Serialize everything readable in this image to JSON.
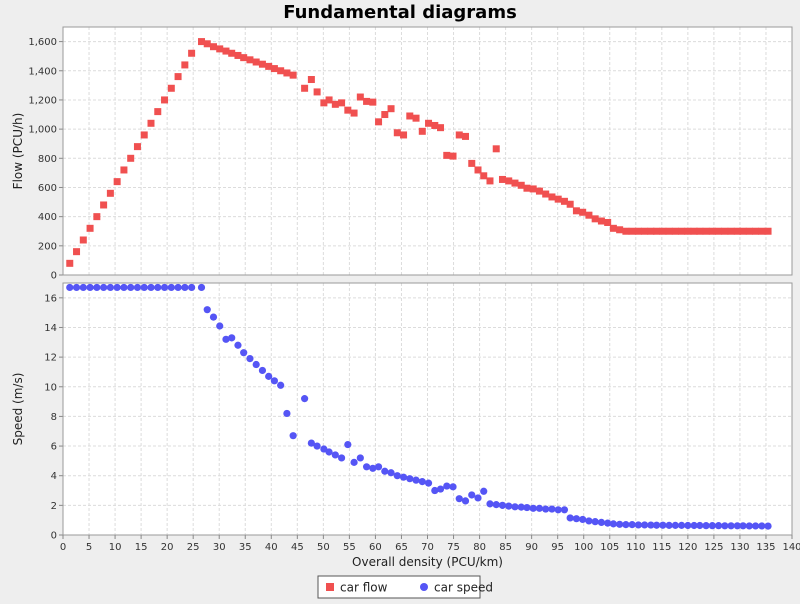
{
  "chart_data": {
    "type": "scatter",
    "title": "Fundamental diagrams",
    "xlabel": "Overall density (PCU/km)",
    "xlim": [
      0,
      140
    ],
    "x_ticks": [
      "0",
      "5",
      "10",
      "15",
      "20",
      "25",
      "30",
      "35",
      "40",
      "45",
      "50",
      "55",
      "60",
      "65",
      "70",
      "75",
      "80",
      "85",
      "90",
      "95",
      "100",
      "105",
      "110",
      "115",
      "120",
      "125",
      "130",
      "135",
      "140"
    ],
    "grid": true,
    "legend_position": "bottom-center",
    "legend": [
      {
        "label": "car flow",
        "marker": "square",
        "color": "#f05050"
      },
      {
        "label": "car speed",
        "marker": "circle",
        "color": "#5555f5"
      }
    ],
    "panels": [
      {
        "ylabel": "Flow (PCU/h)",
        "ylim": [
          0,
          1700
        ],
        "y_ticks": [
          "0",
          "200",
          "400",
          "600",
          "800",
          "1,000",
          "1,200",
          "1,400",
          "1,600"
        ],
        "series": [
          {
            "name": "car flow",
            "color": "#f05050",
            "marker": "square",
            "points": [
              [
                1.3,
                80
              ],
              [
                2.6,
                160
              ],
              [
                3.9,
                240
              ],
              [
                5.2,
                320
              ],
              [
                6.5,
                400
              ],
              [
                7.8,
                480
              ],
              [
                9.1,
                560
              ],
              [
                10.4,
                640
              ],
              [
                11.7,
                720
              ],
              [
                13.0,
                800
              ],
              [
                14.3,
                880
              ],
              [
                15.6,
                960
              ],
              [
                16.9,
                1040
              ],
              [
                18.2,
                1120
              ],
              [
                19.5,
                1200
              ],
              [
                20.8,
                1280
              ],
              [
                22.1,
                1360
              ],
              [
                23.4,
                1440
              ],
              [
                24.7,
                1520
              ],
              [
                26.6,
                1600
              ],
              [
                27.7,
                1585
              ],
              [
                28.9,
                1565
              ],
              [
                30.1,
                1550
              ],
              [
                31.3,
                1535
              ],
              [
                32.4,
                1520
              ],
              [
                33.6,
                1505
              ],
              [
                34.7,
                1490
              ],
              [
                35.9,
                1475
              ],
              [
                37.1,
                1460
              ],
              [
                38.3,
                1445
              ],
              [
                39.5,
                1430
              ],
              [
                40.6,
                1415
              ],
              [
                41.8,
                1400
              ],
              [
                43.0,
                1385
              ],
              [
                44.2,
                1370
              ],
              [
                46.4,
                1280
              ],
              [
                47.7,
                1340
              ],
              [
                48.8,
                1255
              ],
              [
                50.1,
                1180
              ],
              [
                51.1,
                1200
              ],
              [
                52.3,
                1170
              ],
              [
                53.5,
                1180
              ],
              [
                54.7,
                1130
              ],
              [
                55.9,
                1110
              ],
              [
                57.1,
                1220
              ],
              [
                58.3,
                1190
              ],
              [
                59.5,
                1185
              ],
              [
                60.6,
                1050
              ],
              [
                61.8,
                1100
              ],
              [
                63.0,
                1140
              ],
              [
                64.2,
                975
              ],
              [
                65.4,
                960
              ],
              [
                66.6,
                1090
              ],
              [
                67.8,
                1075
              ],
              [
                69.0,
                985
              ],
              [
                70.2,
                1040
              ],
              [
                71.4,
                1025
              ],
              [
                72.5,
                1010
              ],
              [
                73.7,
                820
              ],
              [
                74.9,
                815
              ],
              [
                76.1,
                960
              ],
              [
                77.3,
                950
              ],
              [
                78.5,
                765
              ],
              [
                79.7,
                720
              ],
              [
                80.8,
                680
              ],
              [
                82.0,
                645
              ],
              [
                83.2,
                865
              ],
              [
                84.4,
                655
              ],
              [
                85.6,
                645
              ],
              [
                86.8,
                630
              ],
              [
                88.0,
                615
              ],
              [
                89.1,
                595
              ],
              [
                90.3,
                590
              ],
              [
                91.5,
                575
              ],
              [
                92.7,
                555
              ],
              [
                93.9,
                535
              ],
              [
                95.1,
                520
              ],
              [
                96.3,
                505
              ],
              [
                97.4,
                485
              ],
              [
                98.6,
                440
              ],
              [
                99.8,
                430
              ],
              [
                101.0,
                410
              ],
              [
                102.2,
                385
              ],
              [
                103.4,
                370
              ],
              [
                104.6,
                360
              ],
              [
                105.7,
                320
              ],
              [
                106.9,
                310
              ],
              [
                108.1,
                300
              ],
              [
                109.3,
                300
              ],
              [
                110.5,
                300
              ],
              [
                111.7,
                300
              ],
              [
                112.9,
                300
              ],
              [
                114.0,
                300
              ],
              [
                115.2,
                300
              ],
              [
                116.4,
                300
              ],
              [
                117.6,
                300
              ],
              [
                118.8,
                300
              ],
              [
                120.0,
                300
              ],
              [
                121.2,
                300
              ],
              [
                122.3,
                300
              ],
              [
                123.5,
                300
              ],
              [
                124.7,
                300
              ],
              [
                125.9,
                300
              ],
              [
                127.1,
                300
              ],
              [
                128.3,
                300
              ],
              [
                129.5,
                300
              ],
              [
                130.6,
                300
              ],
              [
                131.8,
                300
              ],
              [
                133.0,
                300
              ],
              [
                134.2,
                300
              ],
              [
                135.4,
                300
              ]
            ]
          }
        ]
      },
      {
        "ylabel": "Speed (m/s)",
        "ylim": [
          0,
          17
        ],
        "y_ticks": [
          "0",
          "2",
          "4",
          "6",
          "8",
          "10",
          "12",
          "14",
          "16"
        ],
        "series": [
          {
            "name": "car speed",
            "color": "#5555f5",
            "marker": "circle",
            "points": [
              [
                1.3,
                16.7
              ],
              [
                2.6,
                16.7
              ],
              [
                3.9,
                16.7
              ],
              [
                5.2,
                16.7
              ],
              [
                6.5,
                16.7
              ],
              [
                7.8,
                16.7
              ],
              [
                9.1,
                16.7
              ],
              [
                10.4,
                16.7
              ],
              [
                11.7,
                16.7
              ],
              [
                13.0,
                16.7
              ],
              [
                14.3,
                16.7
              ],
              [
                15.6,
                16.7
              ],
              [
                16.9,
                16.7
              ],
              [
                18.2,
                16.7
              ],
              [
                19.5,
                16.7
              ],
              [
                20.8,
                16.7
              ],
              [
                22.1,
                16.7
              ],
              [
                23.4,
                16.7
              ],
              [
                24.7,
                16.7
              ],
              [
                26.6,
                16.7
              ],
              [
                27.7,
                15.2
              ],
              [
                28.9,
                14.7
              ],
              [
                30.1,
                14.1
              ],
              [
                31.3,
                13.2
              ],
              [
                32.4,
                13.3
              ],
              [
                33.6,
                12.8
              ],
              [
                34.7,
                12.3
              ],
              [
                35.9,
                11.9
              ],
              [
                37.1,
                11.5
              ],
              [
                38.3,
                11.1
              ],
              [
                39.5,
                10.7
              ],
              [
                40.6,
                10.4
              ],
              [
                41.8,
                10.1
              ],
              [
                43.0,
                8.2
              ],
              [
                44.2,
                6.7
              ],
              [
                46.4,
                9.2
              ],
              [
                47.7,
                6.2
              ],
              [
                48.8,
                6.0
              ],
              [
                50.1,
                5.8
              ],
              [
                51.1,
                5.6
              ],
              [
                52.3,
                5.4
              ],
              [
                53.5,
                5.2
              ],
              [
                54.7,
                6.1
              ],
              [
                55.9,
                4.9
              ],
              [
                57.1,
                5.2
              ],
              [
                58.3,
                4.6
              ],
              [
                59.5,
                4.5
              ],
              [
                60.6,
                4.6
              ],
              [
                61.8,
                4.3
              ],
              [
                63.0,
                4.2
              ],
              [
                64.2,
                4.0
              ],
              [
                65.4,
                3.9
              ],
              [
                66.6,
                3.8
              ],
              [
                67.8,
                3.7
              ],
              [
                69.0,
                3.6
              ],
              [
                70.2,
                3.5
              ],
              [
                71.4,
                3.0
              ],
              [
                72.5,
                3.1
              ],
              [
                73.7,
                3.3
              ],
              [
                74.9,
                3.25
              ],
              [
                76.1,
                2.45
              ],
              [
                77.3,
                2.3
              ],
              [
                78.5,
                2.7
              ],
              [
                79.7,
                2.5
              ],
              [
                80.8,
                2.95
              ],
              [
                82.0,
                2.1
              ],
              [
                83.2,
                2.05
              ],
              [
                84.4,
                2.0
              ],
              [
                85.6,
                1.95
              ],
              [
                86.8,
                1.9
              ],
              [
                88.0,
                1.88
              ],
              [
                89.1,
                1.85
              ],
              [
                90.3,
                1.8
              ],
              [
                91.5,
                1.8
              ],
              [
                92.7,
                1.75
              ],
              [
                93.9,
                1.75
              ],
              [
                95.1,
                1.7
              ],
              [
                96.3,
                1.7
              ],
              [
                97.4,
                1.15
              ],
              [
                98.6,
                1.1
              ],
              [
                99.8,
                1.05
              ],
              [
                101.0,
                0.95
              ],
              [
                102.2,
                0.9
              ],
              [
                103.4,
                0.85
              ],
              [
                104.6,
                0.8
              ],
              [
                105.7,
                0.75
              ],
              [
                106.9,
                0.72
              ],
              [
                108.1,
                0.7
              ],
              [
                109.3,
                0.7
              ],
              [
                110.5,
                0.68
              ],
              [
                111.7,
                0.68
              ],
              [
                112.9,
                0.67
              ],
              [
                114.0,
                0.66
              ],
              [
                115.2,
                0.66
              ],
              [
                116.4,
                0.65
              ],
              [
                117.6,
                0.65
              ],
              [
                118.8,
                0.65
              ],
              [
                120.0,
                0.64
              ],
              [
                121.2,
                0.64
              ],
              [
                122.3,
                0.64
              ],
              [
                123.5,
                0.63
              ],
              [
                124.7,
                0.63
              ],
              [
                125.9,
                0.63
              ],
              [
                127.1,
                0.62
              ],
              [
                128.3,
                0.62
              ],
              [
                129.5,
                0.62
              ],
              [
                130.6,
                0.62
              ],
              [
                131.8,
                0.61
              ],
              [
                133.0,
                0.61
              ],
              [
                134.2,
                0.61
              ],
              [
                135.4,
                0.6
              ]
            ]
          }
        ]
      }
    ]
  }
}
